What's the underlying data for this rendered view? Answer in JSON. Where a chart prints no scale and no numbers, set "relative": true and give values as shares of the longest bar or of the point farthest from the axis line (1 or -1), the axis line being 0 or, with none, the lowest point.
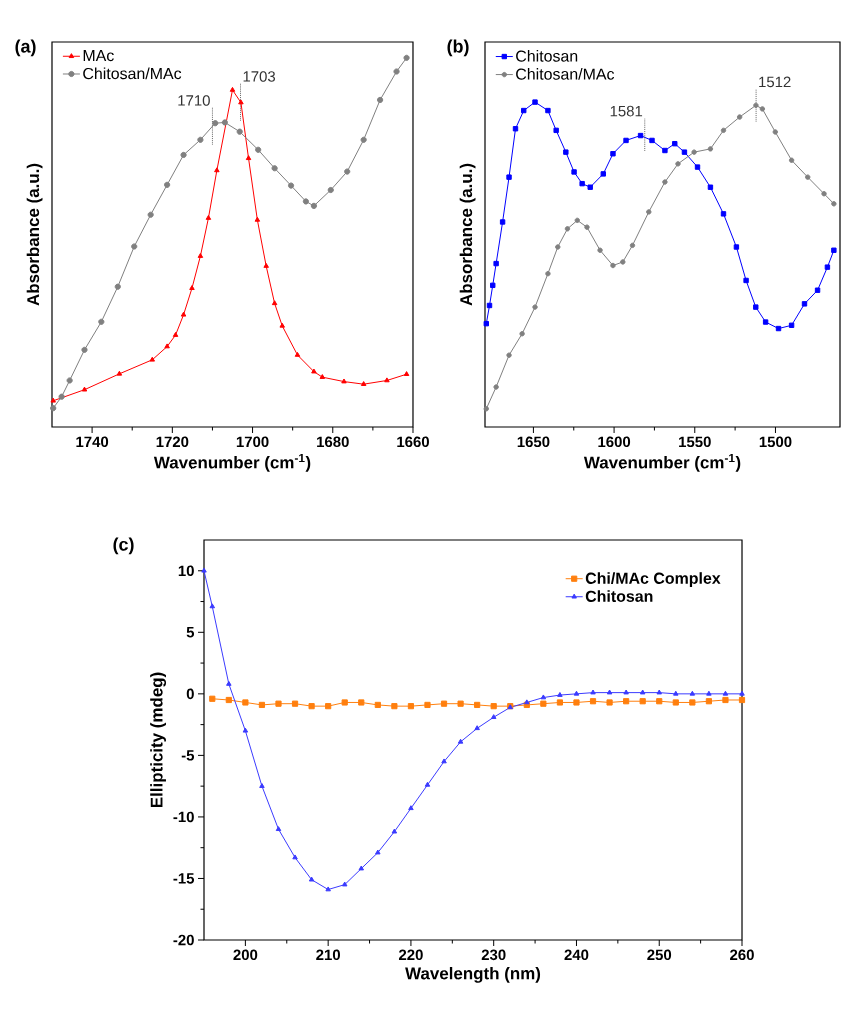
{
  "chart_data": [
    {
      "type": "line",
      "title": "(a)",
      "xlabel": "Wavenumber (cm$^{-1}$)",
      "ylabel": "Absorbance (a.u.)",
      "relative": true,
      "xlim": [
        1750,
        1660
      ],
      "xticks": [
        1740,
        1720,
        1700,
        1680,
        1660
      ],
      "legend": "top left",
      "series": [
        {
          "name": "MAc",
          "color": "#ff0000",
          "marker": "triangle",
          "x": [
            1749.7,
            1741.9,
            1733.2,
            1725,
            1721.3,
            1719.2,
            1717.2,
            1715.1,
            1713,
            1711,
            1708.9,
            1705,
            1702.9,
            1701,
            1698.8,
            1696.6,
            1694.5,
            1692.6,
            1688.8,
            1684.7,
            1682.6,
            1677.2,
            1672.3,
            1666.5,
            1661.6
          ],
          "values": [
            0.071,
            0.101,
            0.144,
            0.182,
            0.218,
            0.249,
            0.304,
            0.376,
            0.463,
            0.566,
            0.695,
            0.913,
            0.879,
            0.728,
            0.561,
            0.436,
            0.335,
            0.274,
            0.195,
            0.15,
            0.135,
            0.123,
            0.116,
            0.126,
            0.143
          ]
        },
        {
          "name": "Chitosan/MAc",
          "color": "#808080",
          "marker": "circle",
          "x": [
            1749.7,
            1747.6,
            1745.6,
            1741.9,
            1737.7,
            1733.6,
            1729.5,
            1725.4,
            1721.3,
            1717.2,
            1713,
            1709.3,
            1706.9,
            1703.2,
            1698.6,
            1694.5,
            1690.4,
            1686.7,
            1684.7,
            1680.5,
            1676.4,
            1672.3,
            1668.2,
            1664.1,
            1661.6
          ],
          "values": [
            0.051,
            0.082,
            0.126,
            0.209,
            0.285,
            0.38,
            0.489,
            0.575,
            0.656,
            0.737,
            0.778,
            0.823,
            0.825,
            0.8,
            0.751,
            0.701,
            0.654,
            0.611,
            0.599,
            0.642,
            0.692,
            0.778,
            0.886,
            0.963,
            1.0
          ]
        }
      ],
      "annotations": [
        {
          "text": "1710",
          "x": 1710,
          "y": 0.815
        },
        {
          "text": "1703",
          "x": 1703,
          "y": 0.88
        }
      ]
    },
    {
      "type": "line",
      "title": "(b)",
      "xlabel": "Wavenumber (cm$^{-1}$)",
      "ylabel": "Absorbance (a.u.)",
      "relative": true,
      "xlim": [
        1680,
        1460
      ],
      "xticks": [
        1650,
        1600,
        1550,
        1500
      ],
      "legend": "top left",
      "series": [
        {
          "name": "Chitosan",
          "color": "#0000ff",
          "marker": "square",
          "x": [
            1679.2,
            1677.2,
            1675.2,
            1673.1,
            1669.1,
            1665.1,
            1661.1,
            1656,
            1649,
            1641,
            1635.9,
            1629.9,
            1624.8,
            1619.8,
            1614.8,
            1606.7,
            1600.7,
            1592.6,
            1583.6,
            1576.5,
            1568.5,
            1562.4,
            1556.4,
            1548.3,
            1540.3,
            1532.2,
            1524.2,
            1518.2,
            1512.2,
            1506.1,
            1498.1,
            1490,
            1482,
            1473.9,
            1467.8,
            1463.8
          ],
          "values": [
            0.318,
            0.374,
            0.436,
            0.503,
            0.631,
            0.769,
            0.918,
            0.974,
            1.0,
            0.974,
            0.913,
            0.846,
            0.785,
            0.749,
            0.738,
            0.779,
            0.841,
            0.882,
            0.897,
            0.882,
            0.851,
            0.872,
            0.846,
            0.8,
            0.738,
            0.656,
            0.554,
            0.451,
            0.369,
            0.323,
            0.303,
            0.313,
            0.379,
            0.421,
            0.492,
            0.544
          ]
        },
        {
          "name": "Chitosan/MAc",
          "color": "#808080",
          "marker": "circle",
          "x": [
            1679.2,
            1673.1,
            1665.1,
            1657,
            1649,
            1641,
            1634.9,
            1628.9,
            1622.8,
            1616.8,
            1608.7,
            1600.7,
            1594.6,
            1588.6,
            1578.5,
            1568.5,
            1560.4,
            1550.4,
            1540.3,
            1532.2,
            1522.2,
            1512.1,
            1508.1,
            1500.1,
            1490,
            1480,
            1469.9,
            1463.8
          ],
          "values": [
            0.056,
            0.123,
            0.221,
            0.287,
            0.369,
            0.472,
            0.554,
            0.61,
            0.636,
            0.615,
            0.544,
            0.497,
            0.508,
            0.559,
            0.662,
            0.754,
            0.81,
            0.846,
            0.856,
            0.913,
            0.954,
            0.99,
            0.979,
            0.908,
            0.821,
            0.769,
            0.718,
            0.687
          ]
        }
      ],
      "annotations": [
        {
          "text": "1581",
          "x": 1581,
          "y": 0.9
        },
        {
          "text": "1512",
          "x": 1512,
          "y": 0.99
        }
      ]
    },
    {
      "type": "line",
      "title": "(c)",
      "xlabel": "Wavelength (nm)",
      "ylabel": "Ellipticity (mdeg)",
      "xlim": [
        195,
        260
      ],
      "xticks": [
        200,
        210,
        220,
        230,
        240,
        250,
        260
      ],
      "ylim": [
        -20,
        12.5
      ],
      "yticks": [
        -20,
        -15,
        -10,
        -5,
        0,
        5,
        10
      ],
      "legend": "top right",
      "series": [
        {
          "name": "Chi/MAc Complex",
          "color": "#ff7f0e",
          "marker": "square",
          "x": [
            196,
            198,
            200,
            202,
            204,
            206,
            208,
            210,
            212,
            214,
            216,
            218,
            220,
            222,
            224,
            226,
            228,
            230,
            232,
            234,
            236,
            238,
            240,
            242,
            244,
            246,
            248,
            250,
            252,
            254,
            256,
            258,
            260
          ],
          "values": [
            -0.4,
            -0.5,
            -0.7,
            -0.9,
            -0.8,
            -0.8,
            -1.0,
            -1.0,
            -0.7,
            -0.7,
            -0.9,
            -1.0,
            -1.0,
            -0.9,
            -0.8,
            -0.8,
            -0.9,
            -1.0,
            -1.0,
            -0.9,
            -0.8,
            -0.7,
            -0.7,
            -0.6,
            -0.7,
            -0.6,
            -0.6,
            -0.6,
            -0.7,
            -0.7,
            -0.6,
            -0.5,
            -0.5
          ]
        },
        {
          "name": "Chitosan",
          "color": "#3a3aff",
          "marker": "triangle",
          "x": [
            195,
            196,
            198,
            200,
            202,
            204,
            206,
            208,
            210,
            212,
            214,
            216,
            218,
            220,
            222,
            224,
            226,
            228,
            230,
            232,
            234,
            236,
            238,
            240,
            242,
            244,
            246,
            248,
            250,
            252,
            254,
            256,
            258,
            260
          ],
          "values": [
            10.0,
            7.1,
            0.8,
            -3.0,
            -7.5,
            -11.0,
            -13.3,
            -15.1,
            -15.9,
            -15.5,
            -14.2,
            -12.9,
            -11.2,
            -9.3,
            -7.4,
            -5.5,
            -3.9,
            -2.8,
            -1.9,
            -1.1,
            -0.7,
            -0.3,
            -0.1,
            0.0,
            0.1,
            0.1,
            0.1,
            0.1,
            0.1,
            0.0,
            0.0,
            0.0,
            0.0,
            0.0
          ]
        }
      ]
    }
  ]
}
